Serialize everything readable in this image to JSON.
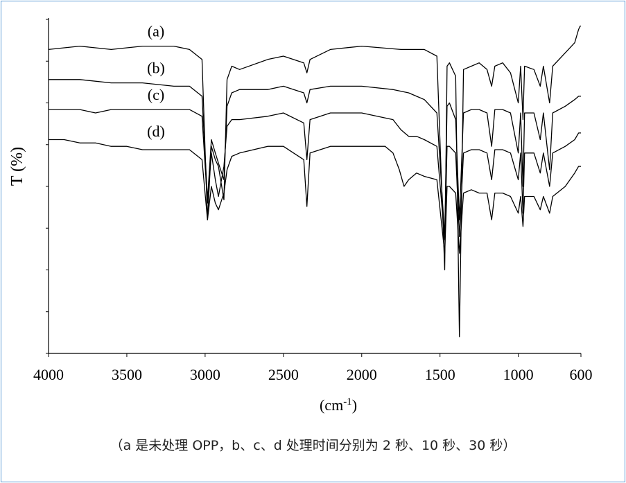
{
  "chart_data": {
    "type": "line",
    "ylabel": "T (%)",
    "xlabel": "(cm-1)",
    "xlim": [
      4000,
      600
    ],
    "x_reversed": true,
    "x_ticks": [
      "4000",
      "3500",
      "3000",
      "2500",
      "2000",
      "1500",
      "1000",
      "600"
    ],
    "x_tick_values": [
      4000,
      3500,
      3000,
      2500,
      2000,
      1500,
      1000,
      600
    ],
    "y_tick_count": 8,
    "y_tick_labels": false,
    "grid": false,
    "legend": "none",
    "line_color": "#000000",
    "series": [
      {
        "name": "(a)",
        "points": [
          [
            4000,
            91
          ],
          [
            3800,
            92
          ],
          [
            3600,
            91
          ],
          [
            3400,
            92
          ],
          [
            3200,
            92
          ],
          [
            3100,
            91
          ],
          [
            3020,
            88
          ],
          [
            2985,
            40
          ],
          [
            2960,
            62
          ],
          [
            2935,
            58
          ],
          [
            2915,
            56
          ],
          [
            2880,
            46
          ],
          [
            2860,
            82
          ],
          [
            2830,
            86
          ],
          [
            2780,
            85
          ],
          [
            2600,
            88
          ],
          [
            2500,
            89
          ],
          [
            2370,
            87
          ],
          [
            2350,
            84
          ],
          [
            2330,
            88
          ],
          [
            2200,
            91
          ],
          [
            2000,
            92
          ],
          [
            1750,
            91
          ],
          [
            1700,
            91
          ],
          [
            1600,
            91
          ],
          [
            1520,
            89
          ],
          [
            1470,
            25
          ],
          [
            1455,
            86
          ],
          [
            1440,
            87
          ],
          [
            1400,
            83
          ],
          [
            1376,
            5
          ],
          [
            1350,
            85
          ],
          [
            1300,
            86
          ],
          [
            1250,
            87
          ],
          [
            1200,
            85
          ],
          [
            1170,
            80
          ],
          [
            1150,
            86
          ],
          [
            1100,
            87
          ],
          [
            1050,
            84
          ],
          [
            1000,
            75
          ],
          [
            985,
            86
          ],
          [
            970,
            70
          ],
          [
            960,
            86
          ],
          [
            900,
            85
          ],
          [
            860,
            80
          ],
          [
            840,
            86
          ],
          [
            800,
            75
          ],
          [
            780,
            86
          ],
          [
            700,
            90
          ],
          [
            640,
            93
          ],
          [
            615,
            97
          ],
          [
            605,
            98
          ],
          [
            600,
            98
          ]
        ]
      },
      {
        "name": "(b)",
        "points": [
          [
            4000,
            82
          ],
          [
            3800,
            82
          ],
          [
            3600,
            81
          ],
          [
            3400,
            81
          ],
          [
            3200,
            80
          ],
          [
            3100,
            80
          ],
          [
            3020,
            77
          ],
          [
            2985,
            46
          ],
          [
            2960,
            64
          ],
          [
            2935,
            60
          ],
          [
            2915,
            57
          ],
          [
            2880,
            52
          ],
          [
            2860,
            74
          ],
          [
            2830,
            78
          ],
          [
            2780,
            79
          ],
          [
            2600,
            79
          ],
          [
            2500,
            80
          ],
          [
            2370,
            78
          ],
          [
            2350,
            75
          ],
          [
            2330,
            79
          ],
          [
            2200,
            80
          ],
          [
            2000,
            80
          ],
          [
            1800,
            79
          ],
          [
            1700,
            78
          ],
          [
            1650,
            77
          ],
          [
            1600,
            76
          ],
          [
            1520,
            72
          ],
          [
            1470,
            35
          ],
          [
            1455,
            74
          ],
          [
            1440,
            75
          ],
          [
            1400,
            70
          ],
          [
            1376,
            40
          ],
          [
            1350,
            72
          ],
          [
            1300,
            73
          ],
          [
            1250,
            73
          ],
          [
            1200,
            72
          ],
          [
            1170,
            62
          ],
          [
            1150,
            73
          ],
          [
            1100,
            73
          ],
          [
            1050,
            72
          ],
          [
            1000,
            60
          ],
          [
            985,
            72
          ],
          [
            970,
            50
          ],
          [
            960,
            72
          ],
          [
            900,
            72
          ],
          [
            860,
            64
          ],
          [
            840,
            72
          ],
          [
            800,
            55
          ],
          [
            780,
            72
          ],
          [
            700,
            74
          ],
          [
            640,
            76
          ],
          [
            615,
            77
          ],
          [
            600,
            77
          ]
        ]
      },
      {
        "name": "(c)",
        "points": [
          [
            4000,
            73
          ],
          [
            3800,
            73
          ],
          [
            3700,
            72
          ],
          [
            3600,
            73
          ],
          [
            3400,
            73
          ],
          [
            3200,
            73
          ],
          [
            3100,
            73
          ],
          [
            3020,
            71
          ],
          [
            2985,
            45
          ],
          [
            2960,
            60
          ],
          [
            2935,
            52
          ],
          [
            2915,
            47
          ],
          [
            2880,
            56
          ],
          [
            2860,
            68
          ],
          [
            2830,
            70
          ],
          [
            2780,
            70
          ],
          [
            2600,
            71
          ],
          [
            2500,
            72
          ],
          [
            2370,
            69
          ],
          [
            2350,
            58
          ],
          [
            2330,
            70
          ],
          [
            2200,
            72
          ],
          [
            2000,
            72
          ],
          [
            1800,
            70
          ],
          [
            1750,
            67
          ],
          [
            1700,
            65
          ],
          [
            1650,
            65
          ],
          [
            1600,
            64
          ],
          [
            1520,
            62
          ],
          [
            1470,
            34
          ],
          [
            1455,
            62
          ],
          [
            1440,
            62
          ],
          [
            1400,
            60
          ],
          [
            1376,
            35
          ],
          [
            1350,
            60
          ],
          [
            1300,
            61
          ],
          [
            1250,
            61
          ],
          [
            1200,
            60
          ],
          [
            1170,
            52
          ],
          [
            1150,
            61
          ],
          [
            1100,
            61
          ],
          [
            1050,
            60
          ],
          [
            1000,
            52
          ],
          [
            985,
            60
          ],
          [
            970,
            42
          ],
          [
            960,
            60
          ],
          [
            900,
            60
          ],
          [
            860,
            54
          ],
          [
            840,
            60
          ],
          [
            800,
            50
          ],
          [
            780,
            60
          ],
          [
            700,
            62
          ],
          [
            640,
            64
          ],
          [
            615,
            66
          ],
          [
            600,
            66
          ]
        ]
      },
      {
        "name": "(d)",
        "points": [
          [
            4000,
            64
          ],
          [
            3900,
            64
          ],
          [
            3800,
            63
          ],
          [
            3700,
            63
          ],
          [
            3600,
            62
          ],
          [
            3500,
            62
          ],
          [
            3400,
            61
          ],
          [
            3300,
            61
          ],
          [
            3200,
            61
          ],
          [
            3100,
            61
          ],
          [
            3020,
            58
          ],
          [
            2985,
            40
          ],
          [
            2960,
            50
          ],
          [
            2935,
            45
          ],
          [
            2915,
            43
          ],
          [
            2880,
            48
          ],
          [
            2860,
            55
          ],
          [
            2830,
            59
          ],
          [
            2780,
            60
          ],
          [
            2600,
            62
          ],
          [
            2500,
            62
          ],
          [
            2370,
            58
          ],
          [
            2350,
            44
          ],
          [
            2330,
            60
          ],
          [
            2200,
            62
          ],
          [
            2000,
            62
          ],
          [
            1850,
            62
          ],
          [
            1800,
            60
          ],
          [
            1760,
            55
          ],
          [
            1730,
            50
          ],
          [
            1700,
            52
          ],
          [
            1650,
            54
          ],
          [
            1600,
            53
          ],
          [
            1520,
            52
          ],
          [
            1470,
            30
          ],
          [
            1455,
            50
          ],
          [
            1440,
            50
          ],
          [
            1400,
            48
          ],
          [
            1376,
            30
          ],
          [
            1350,
            48
          ],
          [
            1300,
            49
          ],
          [
            1250,
            48
          ],
          [
            1200,
            48
          ],
          [
            1170,
            40
          ],
          [
            1150,
            48
          ],
          [
            1100,
            48
          ],
          [
            1050,
            47
          ],
          [
            1000,
            42
          ],
          [
            985,
            47
          ],
          [
            970,
            38
          ],
          [
            960,
            47
          ],
          [
            900,
            47
          ],
          [
            860,
            43
          ],
          [
            840,
            47
          ],
          [
            800,
            42
          ],
          [
            780,
            47
          ],
          [
            700,
            50
          ],
          [
            640,
            54
          ],
          [
            615,
            56
          ],
          [
            600,
            56
          ]
        ]
      }
    ]
  },
  "caption": "（a 是未处理 OPP，b、c、d 处理时间分别为 2 秒、10 秒、30 秒）"
}
